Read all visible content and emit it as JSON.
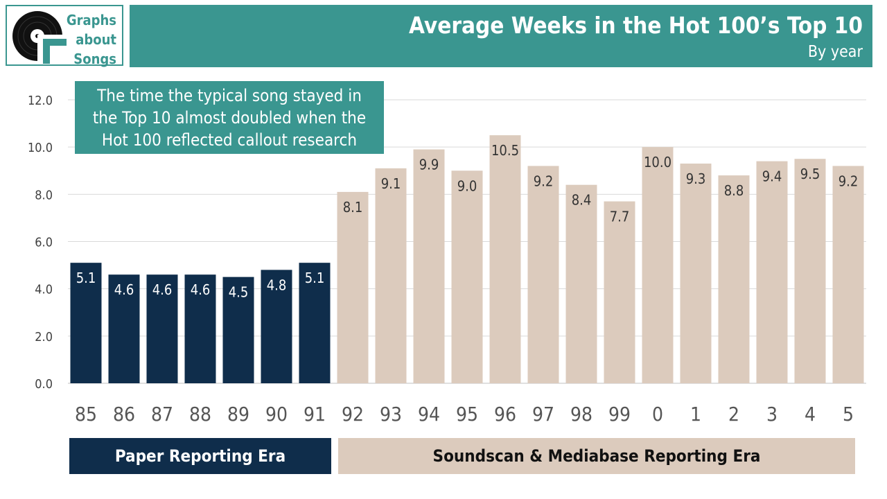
{
  "logo": {
    "lines": [
      "Graphs",
      "about",
      "Songs"
    ]
  },
  "header": {
    "title": "Average Weeks in the Hot 100’s Top 10",
    "subtitle": "By year"
  },
  "callout": {
    "lines": [
      "The time the typical song stayed in",
      "the Top 10 almost doubled when the",
      "Hot 100 reflected callout research"
    ]
  },
  "eras": {
    "paper": "Paper Reporting Era",
    "soundscan": "Soundscan & Mediabase Reporting Era"
  },
  "colors": {
    "teal": "#3a9690",
    "paper": "#0f2d4b",
    "soundscan": "#dccbbd",
    "grid": "#d9d9d9"
  },
  "chart_data": {
    "type": "bar",
    "title": "Average Weeks in the Hot 100’s Top 10",
    "subtitle": "By year",
    "xlabel": "",
    "ylabel": "",
    "ylim": [
      0,
      12
    ],
    "yticks": [
      "0.0",
      "2.0",
      "4.0",
      "6.0",
      "8.0",
      "10.0",
      "12.0"
    ],
    "grid": true,
    "categories": [
      "85",
      "86",
      "87",
      "88",
      "89",
      "90",
      "91",
      "92",
      "93",
      "94",
      "95",
      "96",
      "97",
      "98",
      "99",
      "0",
      "1",
      "2",
      "3",
      "4",
      "5"
    ],
    "values": [
      5.1,
      4.6,
      4.6,
      4.6,
      4.5,
      4.8,
      5.1,
      8.1,
      9.1,
      9.9,
      9.0,
      10.5,
      9.2,
      8.4,
      7.7,
      10.0,
      9.3,
      8.8,
      9.4,
      9.5,
      9.2
    ],
    "labels": [
      "5.1",
      "4.6",
      "4.6",
      "4.6",
      "4.5",
      "4.8",
      "5.1",
      "8.1",
      "9.1",
      "9.9",
      "9.0",
      "10.5",
      "9.2",
      "8.4",
      "7.7",
      "10.0",
      "9.3",
      "8.8",
      "9.4",
      "9.5",
      "9.2"
    ],
    "series_era": [
      "paper",
      "paper",
      "paper",
      "paper",
      "paper",
      "paper",
      "paper",
      "soundscan",
      "soundscan",
      "soundscan",
      "soundscan",
      "soundscan",
      "soundscan",
      "soundscan",
      "soundscan",
      "soundscan",
      "soundscan",
      "soundscan",
      "soundscan",
      "soundscan",
      "soundscan"
    ]
  }
}
